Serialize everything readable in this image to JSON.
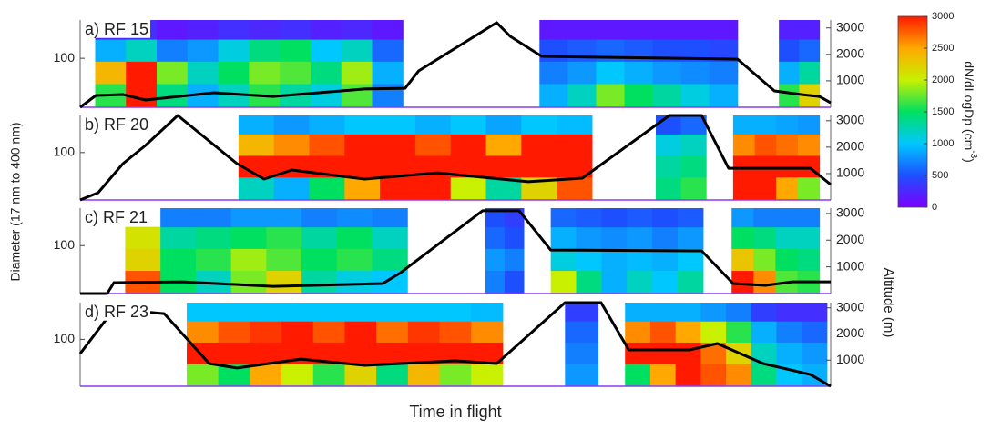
{
  "chart_data": [
    {
      "type": "heatmap",
      "title": "a) RF 15",
      "xlim": [
        0,
        100
      ],
      "ylim": [
        17,
        400
      ],
      "ylog": true,
      "yticks": [
        100
      ],
      "y2lim": [
        0,
        3300
      ],
      "y2ticks": [
        1000,
        2000,
        3000
      ],
      "diameter_bins": [
        17,
        40,
        90,
        200,
        400
      ],
      "segments": [
        {
          "x": [
            2,
            43
          ],
          "values": [
            [
              1600,
              2400,
              900,
              250
            ],
            [
              3000,
              3000,
              1200,
              300
            ],
            [
              1400,
              1800,
              700,
              150
            ],
            [
              900,
              1200,
              800,
              200
            ],
            [
              1200,
              1500,
              1100,
              300
            ],
            [
              1600,
              1800,
              1400,
              250
            ],
            [
              1300,
              1700,
              1500,
              300
            ],
            [
              1100,
              1400,
              1000,
              200
            ],
            [
              1700,
              1900,
              1200,
              250
            ],
            [
              700,
              900,
              600,
              150
            ]
          ]
        },
        {
          "x": [
            61.2,
            87.6
          ],
          "values": [
            [
              900,
              700,
              500,
              150
            ],
            [
              1200,
              800,
              550,
              150
            ],
            [
              1800,
              1000,
              600,
              150
            ],
            [
              1500,
              900,
              550,
              150
            ],
            [
              1300,
              800,
              500,
              150
            ],
            [
              1100,
              750,
              500,
              150
            ],
            [
              900,
              700,
              450,
              150
            ]
          ]
        },
        {
          "x": [
            93.1,
            98.5
          ],
          "values": [
            [
              1600,
              900,
              500,
              200
            ],
            [
              2200,
              1300,
              600,
              200
            ]
          ]
        }
      ],
      "altitude": {
        "color": "#000000",
        "x": [
          0,
          2.1,
          5.7,
          8.7,
          17.8,
          25.7,
          37.9,
          43.3,
          45.1,
          55.5,
          57.3,
          61.5,
          87.6,
          92.5,
          96.1,
          98.5,
          100
        ],
        "values": [
          0,
          447,
          480,
          275,
          550,
          410,
          690,
          720,
          1375,
          3200,
          2680,
          1925,
          1820,
          620,
          480,
          410,
          170
        ]
      }
    },
    {
      "type": "heatmap",
      "title": "b) RF 20",
      "xlim": [
        0,
        100
      ],
      "ylim": [
        17,
        400
      ],
      "ylog": true,
      "yticks": [
        100
      ],
      "y2lim": [
        0,
        3200
      ],
      "y2ticks": [
        1000,
        2000,
        3000
      ],
      "diameter_bins": [
        17,
        40,
        90,
        200,
        400
      ],
      "segments": [
        {
          "x": [
            21.1,
            68.2
          ],
          "values": [
            [
              1200,
              3000,
              2400,
              900
            ],
            [
              900,
              3000,
              2600,
              800
            ],
            [
              1500,
              3000,
              2800,
              900
            ],
            [
              2500,
              3000,
              3000,
              1000
            ],
            [
              3000,
              3000,
              3000,
              1000
            ],
            [
              3000,
              3000,
              2800,
              900
            ],
            [
              2000,
              3000,
              3000,
              1000
            ],
            [
              1300,
              3000,
              2500,
              850
            ],
            [
              2200,
              3000,
              3000,
              1000
            ],
            [
              2800,
              3000,
              3000,
              950
            ]
          ]
        },
        {
          "x": [
            76.7,
            83.4
          ],
          "values": [
            [
              1400,
              1300,
              1100,
              500
            ],
            [
              1600,
              1400,
              1200,
              600
            ]
          ]
        },
        {
          "x": [
            87,
            98.5
          ],
          "values": [
            [
              3000,
              3000,
              2600,
              900
            ],
            [
              3000,
              3000,
              2800,
              900
            ],
            [
              2500,
              3000,
              2700,
              850
            ],
            [
              1800,
              3000,
              2600,
              800
            ]
          ]
        }
      ],
      "altitude": {
        "color": "#000000",
        "x": [
          0,
          2.4,
          5.7,
          8.7,
          13,
          20.9,
          24.5,
          28.2,
          37.9,
          47.6,
          59.7,
          66.9,
          78.5,
          82.8,
          86.4,
          97.3,
          100
        ],
        "values": [
          0,
          275,
          1375,
          2065,
          3200,
          1375,
          790,
          1135,
          790,
          1030,
          690,
          825,
          3200,
          3200,
          1200,
          1200,
          585
        ]
      }
    },
    {
      "type": "heatmap",
      "title": "c) RF 21",
      "xlim": [
        0,
        100
      ],
      "ylim": [
        17,
        400
      ],
      "ylog": true,
      "yticks": [
        100
      ],
      "y2lim": [
        0,
        3200
      ],
      "y2ticks": [
        1000,
        2000,
        3000
      ],
      "diameter_bins": [
        17,
        40,
        90,
        200,
        400
      ],
      "segments": [
        {
          "x": [
            6,
            43.6
          ],
          "values": [
            [
              2800,
              2200,
              2100,
              null
            ],
            [
              1500,
              1500,
              1300,
              700
            ],
            [
              1200,
              1600,
              1400,
              700
            ],
            [
              1800,
              1900,
              1500,
              800
            ],
            [
              2200,
              1700,
              1600,
              800
            ],
            [
              1300,
              1500,
              1300,
              700
            ],
            [
              1100,
              1600,
              1500,
              750
            ],
            [
              1000,
              1400,
              1200,
              700
            ]
          ]
        },
        {
          "x": [
            54,
            59.1
          ],
          "values": [
            [
              700,
              800,
              600,
              500
            ],
            [
              500,
              700,
              500,
              400
            ]
          ]
        },
        {
          "x": [
            62.7,
            83
          ],
          "values": [
            [
              2000,
              1100,
              900,
              600
            ],
            [
              1400,
              1000,
              800,
              550
            ],
            [
              900,
              900,
              750,
              500
            ],
            [
              1200,
              950,
              800,
              550
            ],
            [
              1000,
              900,
              700,
              500
            ],
            [
              1300,
              1000,
              800,
              550
            ]
          ]
        },
        {
          "x": [
            86.8,
            98.5
          ],
          "values": [
            [
              3000,
              2300,
              1500,
              800
            ],
            [
              2600,
              1800,
              1400,
              700
            ],
            [
              1700,
              1500,
              1200,
              700
            ],
            [
              1600,
              1400,
              1200,
              700
            ]
          ]
        }
      ],
      "altitude": {
        "color": "#000000",
        "x": [
          0,
          3.6,
          4.5,
          13.6,
          25.7,
          40.3,
          42.7,
          53.6,
          58.5,
          62.7,
          82.8,
          87,
          91.3,
          94.9,
          100
        ],
        "values": [
          0,
          0,
          410,
          440,
          270,
          375,
          780,
          3100,
          3100,
          1630,
          1600,
          375,
          305,
          440,
          440
        ]
      }
    },
    {
      "type": "heatmap",
      "title": "d) RF 23",
      "xlim": [
        0,
        100
      ],
      "ylim": [
        17,
        400
      ],
      "ylog": true,
      "yticks": [
        100
      ],
      "y2lim": [
        0,
        3200
      ],
      "y2ticks": [
        1000,
        2000,
        3000
      ],
      "diameter_bins": [
        17,
        40,
        90,
        200,
        400
      ],
      "segments": [
        {
          "x": [
            14.2,
            56.3
          ],
          "values": [
            [
              1800,
              3000,
              2600,
              1000
            ],
            [
              1500,
              3000,
              2800,
              1000
            ],
            [
              2500,
              3000,
              2900,
              1000
            ],
            [
              2000,
              3000,
              3000,
              1000
            ],
            [
              1600,
              3000,
              2800,
              1000
            ],
            [
              2200,
              3000,
              3000,
              1000
            ],
            [
              1400,
              3000,
              2700,
              1000
            ],
            [
              2400,
              3000,
              2900,
              1000
            ],
            [
              1800,
              3000,
              2800,
              1000
            ],
            [
              2000,
              3000,
              2600,
              950
            ]
          ]
        },
        {
          "x": [
            64.6,
            69
          ],
          "values": [
            [
              800,
              700,
              600,
              400
            ]
          ]
        },
        {
          "x": [
            72.6,
            99.5
          ],
          "values": [
            [
              1500,
              3000,
              2600,
              900
            ],
            [
              2500,
              3000,
              2800,
              900
            ],
            [
              3000,
              3000,
              2500,
              900
            ],
            [
              2800,
              2700,
              2000,
              800
            ],
            [
              2600,
              2200,
              1600,
              700
            ],
            [
              1400,
              1200,
              900,
              400
            ],
            [
              1000,
              900,
              700,
              300
            ],
            [
              900,
              800,
              600,
              300
            ]
          ]
        }
      ],
      "altitude": {
        "color": "#000000",
        "x": [
          0,
          4.5,
          11.2,
          17.2,
          20.9,
          29.4,
          37.9,
          50,
          55.5,
          64.6,
          69.4,
          73.1,
          81.2,
          84.9,
          91,
          97.3,
          100
        ],
        "values": [
          1250,
          2950,
          2780,
          870,
          700,
          1040,
          800,
          975,
          870,
          3200,
          3200,
          1390,
          1390,
          1635,
          870,
          450,
          0
        ]
      }
    }
  ],
  "ylabel": "Diameter (17 nm to 400 nm)",
  "y2label": "Altitude (m)",
  "xlabel": "Time in flight",
  "colorbar": {
    "label": "dN/dLogDp (cm",
    "label_sup": "-3",
    "label_end": ")",
    "lim": [
      0,
      3000
    ],
    "ticks": [
      0,
      500,
      1000,
      1500,
      2000,
      2500,
      3000
    ],
    "colors": [
      "#7a00ff",
      "#1e4fff",
      "#00c8ff",
      "#00e060",
      "#c8f000",
      "#ffa800",
      "#ff1a00"
    ]
  }
}
